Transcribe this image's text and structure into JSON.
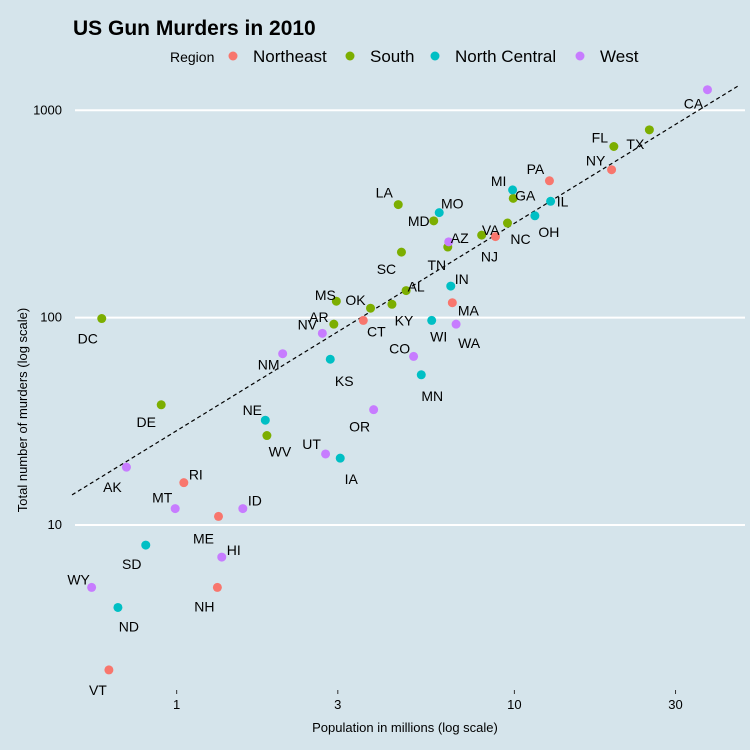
{
  "chart_data": {
    "type": "scatter",
    "title": "US Gun Murders in 2010",
    "xlabel": "Population in millions (log scale)",
    "ylabel": "Total number of murders (log scale)",
    "x_scale": "log",
    "y_scale": "log",
    "xlim": [
      0.5,
      45
    ],
    "ylim": [
      1.6,
      1400
    ],
    "x_ticks": [
      1,
      3,
      10,
      30
    ],
    "x_tick_labels": [
      "1",
      "3",
      "10",
      "30"
    ],
    "y_ticks": [
      10,
      100,
      1000
    ],
    "y_tick_labels": [
      "10",
      "100",
      "1000"
    ],
    "grid": true,
    "legend": {
      "title": "Region",
      "placement": "top"
    },
    "reference_line": {
      "style": "dashed",
      "slope": 1,
      "murders_per_million": 28.5
    },
    "series": [
      {
        "name": "Northeast",
        "color": "#f8766d",
        "points": [
          {
            "label": "VT",
            "x": 0.63,
            "y": 2
          },
          {
            "label": "NH",
            "x": 1.32,
            "y": 5
          },
          {
            "label": "ME",
            "x": 1.33,
            "y": 11
          },
          {
            "label": "RI",
            "x": 1.05,
            "y": 16
          },
          {
            "label": "CT",
            "x": 3.57,
            "y": 97
          },
          {
            "label": "MA",
            "x": 6.55,
            "y": 118
          },
          {
            "label": "NJ",
            "x": 8.79,
            "y": 246
          },
          {
            "label": "PA",
            "x": 12.7,
            "y": 457
          },
          {
            "label": "NY",
            "x": 19.4,
            "y": 517
          }
        ]
      },
      {
        "name": "South",
        "color": "#7cae00",
        "points": [
          {
            "label": "DC",
            "x": 0.6,
            "y": 99
          },
          {
            "label": "DE",
            "x": 0.9,
            "y": 38
          },
          {
            "label": "WV",
            "x": 1.85,
            "y": 27
          },
          {
            "label": "MS",
            "x": 2.97,
            "y": 120
          },
          {
            "label": "AR",
            "x": 2.92,
            "y": 93
          },
          {
            "label": "OK",
            "x": 3.75,
            "y": 111
          },
          {
            "label": "KY",
            "x": 4.34,
            "y": 116
          },
          {
            "label": "LA",
            "x": 4.53,
            "y": 351
          },
          {
            "label": "SC",
            "x": 4.63,
            "y": 207
          },
          {
            "label": "AL",
            "x": 4.78,
            "y": 135
          },
          {
            "label": "MD",
            "x": 5.77,
            "y": 293
          },
          {
            "label": "TN",
            "x": 6.35,
            "y": 219
          },
          {
            "label": "VA",
            "x": 8.0,
            "y": 250
          },
          {
            "label": "NC",
            "x": 9.54,
            "y": 286
          },
          {
            "label": "GA",
            "x": 9.92,
            "y": 376
          },
          {
            "label": "FL",
            "x": 19.7,
            "y": 669
          },
          {
            "label": "TX",
            "x": 25.1,
            "y": 805
          }
        ]
      },
      {
        "name": "North Central",
        "color": "#00bfc4",
        "points": [
          {
            "label": "ND",
            "x": 0.67,
            "y": 4
          },
          {
            "label": "SD",
            "x": 0.81,
            "y": 8
          },
          {
            "label": "NE",
            "x": 1.83,
            "y": 32
          },
          {
            "label": "KS",
            "x": 2.85,
            "y": 63
          },
          {
            "label": "IA",
            "x": 3.05,
            "y": 21
          },
          {
            "label": "MN",
            "x": 5.3,
            "y": 53
          },
          {
            "label": "WI",
            "x": 5.69,
            "y": 97
          },
          {
            "label": "MO",
            "x": 5.99,
            "y": 321
          },
          {
            "label": "IN",
            "x": 6.48,
            "y": 142
          },
          {
            "label": "MI",
            "x": 9.88,
            "y": 413
          },
          {
            "label": "OH",
            "x": 11.5,
            "y": 310
          },
          {
            "label": "IL",
            "x": 12.8,
            "y": 364
          }
        ]
      },
      {
        "name": "West",
        "color": "#c77cff",
        "points": [
          {
            "label": "WY",
            "x": 0.56,
            "y": 5
          },
          {
            "label": "AK",
            "x": 0.71,
            "y": 19
          },
          {
            "label": "MT",
            "x": 0.99,
            "y": 12
          },
          {
            "label": "HI",
            "x": 1.36,
            "y": 7
          },
          {
            "label": "ID",
            "x": 1.57,
            "y": 12
          },
          {
            "label": "NM",
            "x": 2.06,
            "y": 67
          },
          {
            "label": "NV",
            "x": 2.7,
            "y": 84
          },
          {
            "label": "UT",
            "x": 2.76,
            "y": 22
          },
          {
            "label": "OR",
            "x": 3.83,
            "y": 36
          },
          {
            "label": "CO",
            "x": 5.03,
            "y": 65
          },
          {
            "label": "AZ",
            "x": 6.39,
            "y": 232
          },
          {
            "label": "WA",
            "x": 6.72,
            "y": 93
          },
          {
            "label": "CA",
            "x": 37.3,
            "y": 1257
          }
        ]
      }
    ]
  }
}
